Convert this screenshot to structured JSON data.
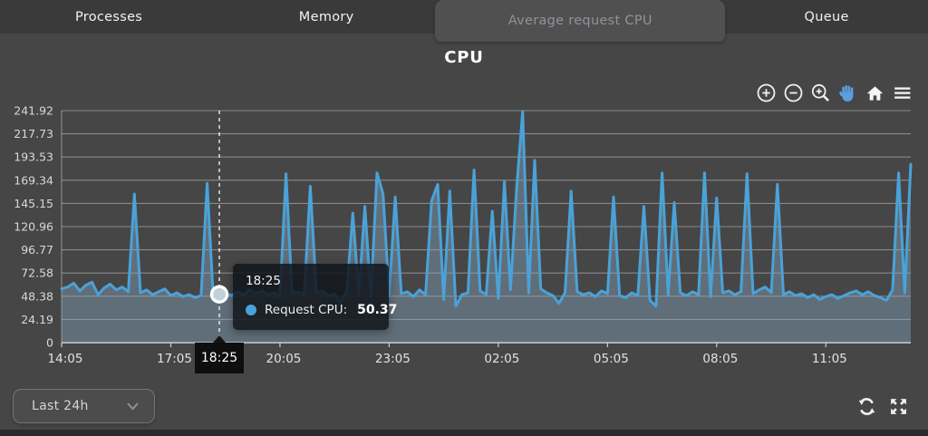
{
  "tabs": {
    "items": [
      {
        "label": "Processes",
        "active": false
      },
      {
        "label": "Memory",
        "active": false
      },
      {
        "label": "Average request CPU",
        "active": true
      },
      {
        "label": "Queue",
        "active": false
      }
    ]
  },
  "header": {
    "title": "CPU"
  },
  "chart_toolbar": {
    "icons": [
      "zoom-in-circle",
      "zoom-out-circle",
      "box-zoom-magnifier",
      "pan-hand",
      "reset-home",
      "menu"
    ],
    "active_tool": "pan-hand",
    "active_tool_color": "#5b9fe0"
  },
  "chart_data": {
    "type": "line",
    "title": "CPU",
    "x_start": "14:05",
    "interval_minutes": 10,
    "x_tick_labels": [
      "14:05",
      "17:05",
      "20:05",
      "23:05",
      "02:05",
      "05:05",
      "08:05",
      "11:05"
    ],
    "x_tick_indices": [
      0,
      18,
      36,
      54,
      72,
      90,
      108,
      126
    ],
    "y_tick_labels": [
      "0",
      "24.19",
      "48.38",
      "72.58",
      "96.77",
      "120.96",
      "145.15",
      "169.34",
      "193.53",
      "217.73",
      "241.92"
    ],
    "ylim": [
      0,
      241.92
    ],
    "grid": true,
    "legend": "none",
    "series": [
      {
        "name": "Request CPU",
        "color": "#4aa2d8",
        "fill_color": "rgba(133,167,192,0.42)",
        "values": [
          56,
          58,
          62,
          54,
          60,
          63,
          50,
          57,
          61,
          55,
          58,
          53,
          155,
          52,
          55,
          50,
          53,
          56,
          49,
          52,
          48,
          50,
          47,
          49,
          166,
          47,
          50.37,
          52,
          49,
          53,
          50,
          55,
          51,
          54,
          50,
          52,
          48,
          176,
          51,
          53,
          50,
          163,
          52,
          54,
          49,
          51,
          42,
          53,
          135,
          50,
          142,
          48,
          177,
          155,
          49,
          152,
          51,
          53,
          48,
          55,
          50,
          148,
          165,
          45,
          158,
          38,
          50,
          52,
          180,
          54,
          50,
          137,
          46,
          168,
          55,
          160,
          241,
          52,
          190,
          56,
          52,
          49,
          41,
          52,
          158,
          53,
          50,
          52,
          48,
          54,
          51,
          152,
          49,
          47,
          52,
          49,
          142,
          44,
          38,
          177,
          50,
          146,
          52,
          49,
          53,
          50,
          177,
          48,
          151,
          52,
          54,
          50,
          53,
          176,
          51,
          55,
          58,
          52,
          165,
          50,
          53,
          49,
          51,
          47,
          50,
          45,
          48,
          50,
          46,
          49,
          52,
          54,
          50,
          53,
          49,
          47,
          44,
          55,
          177,
          52,
          186
        ]
      }
    ],
    "crosshair": {
      "index": 26,
      "time": "18:25",
      "value": 50.37
    }
  },
  "tooltip": {
    "time": "18:25",
    "series_label": "Request CPU:",
    "value": "50.37"
  },
  "crosshair_axis_label": "18:25",
  "controls": {
    "range_select": {
      "value": "Last 24h"
    },
    "icons": [
      "refresh",
      "expand"
    ]
  },
  "colors": {
    "accent_blue": "#4aa2d8",
    "page_bg": "#464646",
    "tab_bar_bg": "#3a3a3a",
    "active_tab_bg": "#505050",
    "tooltip_bg": "rgba(15,19,25,0.84)",
    "crosshair_label_bg": "#0e0e0e"
  }
}
